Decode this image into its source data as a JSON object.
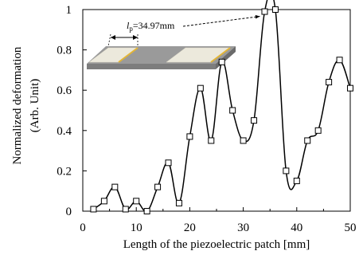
{
  "chart_data": {
    "type": "line",
    "xlabel": "Length of the piezoelectric patch [mm]",
    "ylabel": "Normalized deformation",
    "ylabel_unit": "(Arb. Unit)",
    "xlim": [
      0,
      50
    ],
    "ylim": [
      0,
      1
    ],
    "x_ticks": [
      0,
      10,
      20,
      30,
      40,
      50
    ],
    "y_ticks": [
      0,
      0.2,
      0.4,
      0.6,
      0.8,
      1
    ],
    "x_tick_labels": [
      "0",
      "10",
      "20",
      "30",
      "40",
      "50"
    ],
    "y_tick_labels": [
      "0",
      "0.2",
      "0.4",
      "0.6",
      "0.8",
      "1"
    ],
    "grid": false,
    "marker": "open-square",
    "series": [
      {
        "x": [
          2,
          4,
          6,
          8,
          10,
          12,
          14,
          16,
          18,
          20,
          22,
          24,
          26,
          28,
          30,
          32,
          34,
          36,
          38,
          40,
          42,
          44,
          46,
          48,
          50
        ],
        "y": [
          0.01,
          0.05,
          0.12,
          0.01,
          0.05,
          0.0,
          0.12,
          0.24,
          0.04,
          0.37,
          0.61,
          0.35,
          0.74,
          0.5,
          0.35,
          0.45,
          0.99,
          1.0,
          0.2,
          0.15,
          0.35,
          0.4,
          0.64,
          0.75,
          0.61
        ]
      }
    ],
    "annotation": {
      "symbol": "l",
      "subscript": "p",
      "text": "=34.97mm",
      "points_to_x": 34,
      "points_to_y": 0.99
    },
    "inset_colors": {
      "plate_top": "#9a9a9a",
      "plate_side": "#7d7d7d",
      "patch_top": "#ece9dc",
      "patch_edge": "#e3b536"
    }
  }
}
